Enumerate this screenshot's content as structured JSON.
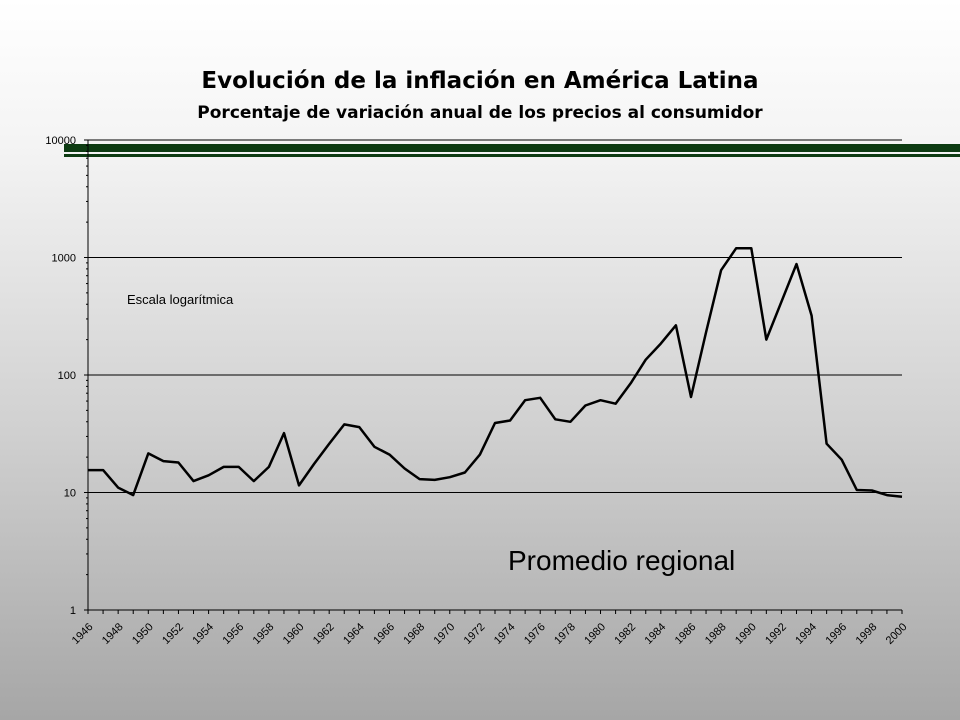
{
  "page": {
    "title": "Evolución de la  inflación en América Latina",
    "subtitle": "Porcentaje de variación anual de los precios al consumidor",
    "accent_color": "#0d3b12"
  },
  "chart_data": {
    "type": "line",
    "yscale": "log",
    "ylim": [
      1,
      10000
    ],
    "yticks": [
      "1",
      "10",
      "100",
      "1000",
      "10000"
    ],
    "xlim": [
      1946,
      2000
    ],
    "xticks": [
      "1946",
      "1948",
      "1950",
      "1952",
      "1954",
      "1956",
      "1958",
      "1960",
      "1962",
      "1964",
      "1966",
      "1968",
      "1970",
      "1972",
      "1974",
      "1976",
      "1978",
      "1980",
      "1982",
      "1984",
      "1986",
      "1988",
      "1990",
      "1992",
      "1994",
      "1996",
      "1998",
      "2000"
    ],
    "grid": true,
    "annotations": [
      {
        "text": "Escala logarítmica"
      },
      {
        "text": "Promedio regional"
      }
    ],
    "series": [
      {
        "color": "#000000",
        "x": [
          1946,
          1947,
          1948,
          1949,
          1950,
          1951,
          1952,
          1953,
          1954,
          1955,
          1956,
          1957,
          1958,
          1959,
          1960,
          1961,
          1962,
          1963,
          1964,
          1965,
          1966,
          1967,
          1968,
          1969,
          1970,
          1971,
          1972,
          1973,
          1974,
          1975,
          1976,
          1977,
          1978,
          1979,
          1980,
          1981,
          1982,
          1983,
          1984,
          1985,
          1986,
          1987,
          1988,
          1989,
          1990,
          1991,
          1992,
          1993,
          1994,
          1995,
          1996,
          1997,
          1998,
          1999,
          2000
        ],
        "values": [
          15.5,
          15.5,
          11,
          9.5,
          21.5,
          18.5,
          18,
          12.5,
          14,
          16.5,
          16.5,
          12.5,
          16.5,
          32,
          11.5,
          17.5,
          26,
          38,
          36,
          24.5,
          21,
          16,
          13,
          12.8,
          13.5,
          14.8,
          21,
          39,
          41,
          61,
          64,
          42,
          40,
          55,
          61,
          57,
          85,
          135,
          185,
          265,
          65,
          230,
          780,
          1200,
          1200,
          200,
          420,
          880,
          320,
          26,
          19,
          10.5,
          10.4,
          9.5,
          9.2
        ]
      }
    ]
  }
}
